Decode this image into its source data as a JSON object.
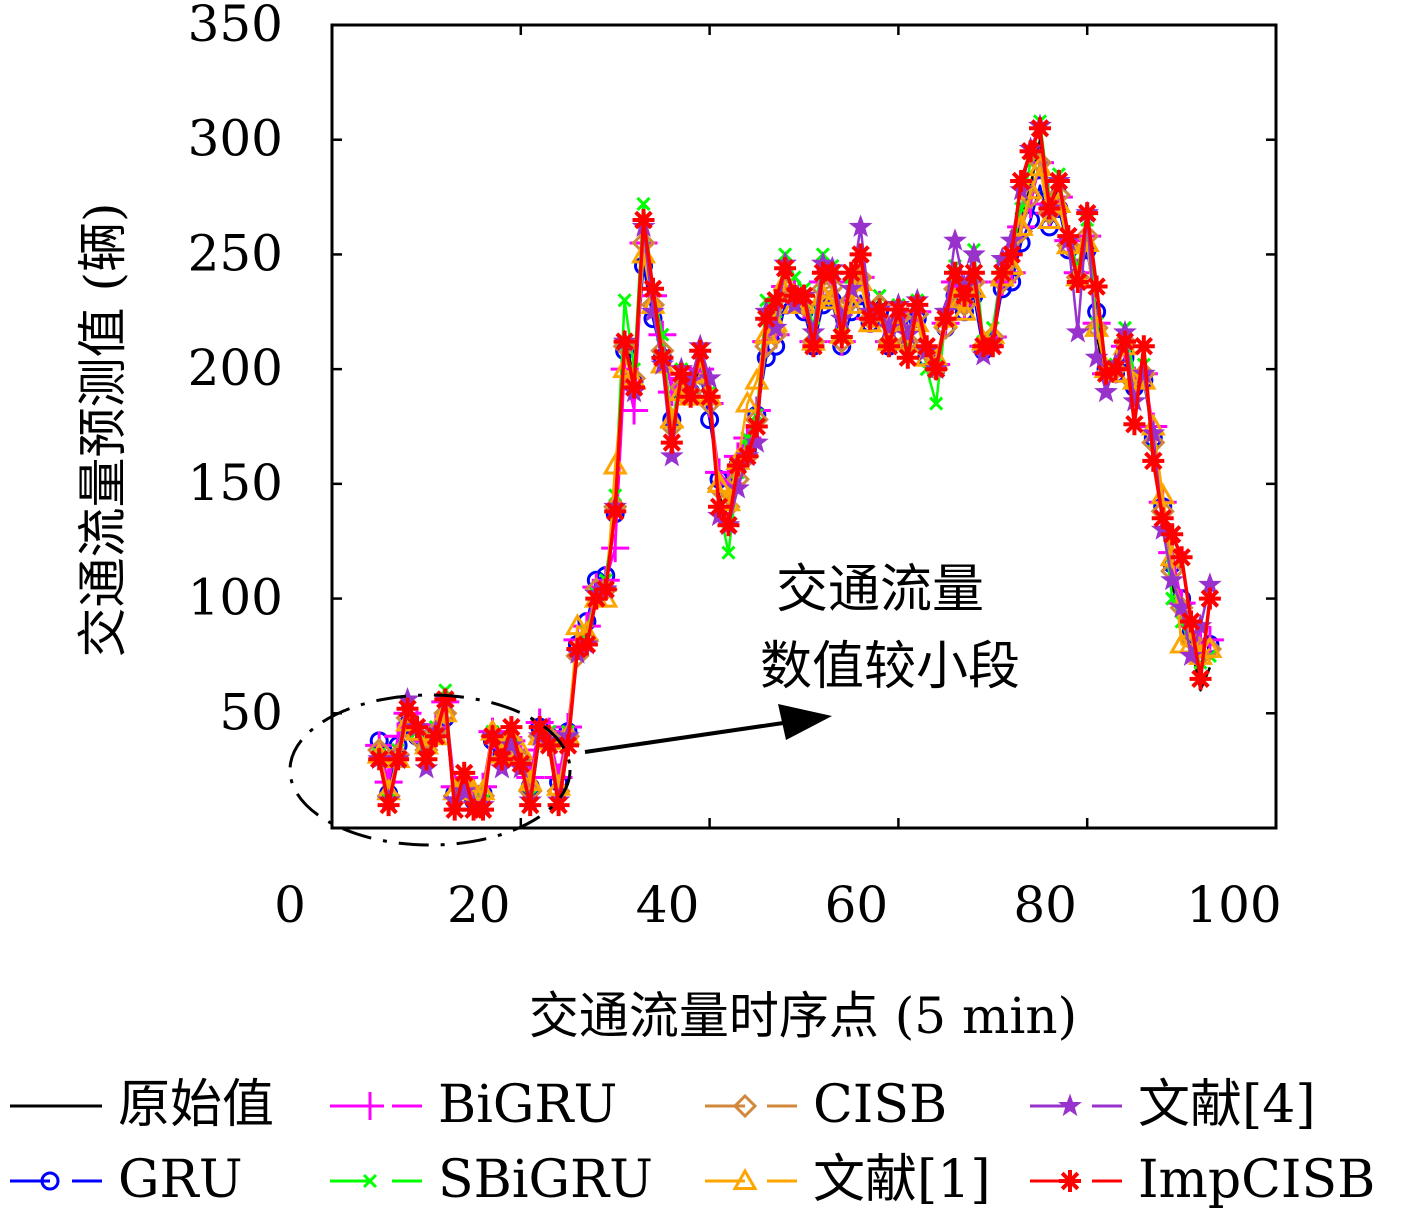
{
  "chart_data": {
    "type": "line",
    "title": "",
    "xlabel": "交通流量时序点 (5 min)",
    "ylabel": "交通流量预测值 (辆)",
    "xlim": [
      0,
      100
    ],
    "ylim": [
      0,
      350
    ],
    "xticks": [
      0,
      20,
      40,
      60,
      80,
      100
    ],
    "yticks": [
      50,
      100,
      150,
      200,
      250,
      300,
      350
    ],
    "xtick_labels": [
      "0",
      "20",
      "40",
      "60",
      "80",
      "100"
    ],
    "ytick_labels": [
      "50",
      "100",
      "150",
      "200",
      "250",
      "300",
      "350"
    ],
    "grid": false,
    "legend_position": "bottom",
    "annotation": {
      "line1": "交通流量",
      "line2": "数值较小段"
    },
    "x": [
      1,
      2,
      3,
      4,
      5,
      6,
      7,
      8,
      9,
      10,
      11,
      12,
      13,
      14,
      15,
      16,
      17,
      18,
      19,
      20,
      21,
      22,
      23,
      24,
      25,
      26,
      27,
      28,
      29,
      30,
      31,
      32,
      33,
      34,
      35,
      36,
      37,
      38,
      39,
      40,
      41,
      42,
      43,
      44,
      45,
      46,
      47,
      48,
      49,
      50,
      51,
      52,
      53,
      54,
      55,
      56,
      57,
      58,
      59,
      60,
      61,
      62,
      63,
      64,
      65,
      66,
      67,
      68,
      69,
      70,
      71,
      72,
      73,
      74,
      75,
      76,
      77,
      78,
      79,
      80,
      81,
      82,
      83,
      84,
      85,
      86,
      87,
      88,
      89,
      90,
      91,
      92,
      93,
      94,
      95,
      96,
      97,
      98,
      99,
      100
    ],
    "series": [
      {
        "name": "原始值",
        "color": "#000000",
        "marker": "none",
        "dashed": false,
        "values": [
          null,
          null,
          null,
          null,
          30,
          10,
          30,
          50,
          40,
          30,
          40,
          50,
          10,
          20,
          10,
          10,
          40,
          30,
          40,
          30,
          10,
          40,
          40,
          10,
          40,
          75,
          80,
          100,
          105,
          140,
          215,
          195,
          265,
          230,
          210,
          170,
          195,
          190,
          200,
          190,
          145,
          135,
          150,
          160,
          175,
          215,
          220,
          240,
          235,
          230,
          215,
          240,
          240,
          215,
          235,
          245,
          225,
          230,
          215,
          225,
          215,
          225,
          210,
          200,
          220,
          240,
          230,
          240,
          210,
          215,
          240,
          245,
          265,
          280,
          300,
          270,
          280,
          255,
          240,
          260,
          215,
          195,
          200,
          215,
          195,
          200,
          165,
          135,
          105,
          95,
          80,
          60,
          70,
          null,
          null,
          null,
          null,
          null,
          null,
          null
        ]
      },
      {
        "name": "GRU",
        "color": "#0000ff",
        "marker": "circle",
        "dashed": true,
        "values": [
          null,
          null,
          null,
          null,
          38,
          15,
          36,
          45,
          40,
          35,
          42,
          48,
          15,
          18,
          12,
          15,
          38,
          32,
          36,
          30,
          18,
          44,
          40,
          20,
          42,
          80,
          90,
          108,
          110,
          137,
          208,
          195,
          245,
          222,
          205,
          178,
          190,
          190,
          198,
          178,
          152,
          148,
          158,
          165,
          180,
          205,
          210,
          228,
          230,
          225,
          210,
          228,
          230,
          210,
          225,
          232,
          220,
          225,
          210,
          220,
          210,
          222,
          205,
          200,
          218,
          232,
          225,
          232,
          208,
          212,
          235,
          238,
          255,
          265,
          280,
          262,
          270,
          252,
          240,
          252,
          225,
          200,
          198,
          205,
          192,
          195,
          170,
          140,
          115,
          100,
          85,
          78,
          80,
          null,
          null,
          null,
          null,
          null,
          null,
          null
        ]
      },
      {
        "name": "BiGRU",
        "color": "#ff00ff",
        "marker": "plus",
        "dashed": true,
        "values": [
          null,
          null,
          null,
          null,
          36,
          20,
          40,
          50,
          45,
          38,
          44,
          55,
          18,
          22,
          16,
          18,
          42,
          35,
          38,
          34,
          22,
          46,
          42,
          22,
          44,
          82,
          88,
          105,
          108,
          122,
          200,
          182,
          255,
          232,
          215,
          190,
          196,
          195,
          200,
          185,
          155,
          150,
          162,
          170,
          182,
          212,
          215,
          236,
          234,
          228,
          212,
          238,
          238,
          212,
          230,
          240,
          222,
          228,
          212,
          222,
          212,
          225,
          208,
          202,
          220,
          238,
          228,
          238,
          210,
          214,
          238,
          242,
          262,
          272,
          290,
          268,
          275,
          256,
          242,
          258,
          220,
          198,
          200,
          210,
          195,
          198,
          175,
          142,
          120,
          98,
          88,
          80,
          82,
          null,
          null,
          null,
          null,
          null,
          null,
          null
        ]
      },
      {
        "name": "SBiGRU",
        "color": "#00ff00",
        "marker": "x",
        "dashed": true,
        "values": [
          null,
          null,
          null,
          null,
          32,
          12,
          34,
          52,
          42,
          32,
          44,
          60,
          10,
          20,
          12,
          12,
          42,
          30,
          40,
          28,
          14,
          42,
          42,
          12,
          42,
          78,
          86,
          102,
          108,
          145,
          230,
          200,
          272,
          235,
          215,
          175,
          200,
          192,
          203,
          190,
          140,
          120,
          155,
          170,
          180,
          230,
          225,
          250,
          240,
          235,
          218,
          250,
          245,
          215,
          240,
          250,
          228,
          232,
          212,
          228,
          210,
          230,
          200,
          185,
          222,
          245,
          232,
          252,
          212,
          218,
          245,
          250,
          270,
          290,
          308,
          275,
          285,
          258,
          244,
          265,
          220,
          198,
          202,
          218,
          198,
          202,
          168,
          135,
          100,
          90,
          78,
          72,
          75,
          null,
          null,
          null,
          null,
          null,
          null,
          null
        ]
      },
      {
        "name": "CISB",
        "color": "#d2883c",
        "marker": "diamond",
        "dashed": true,
        "values": [
          null,
          null,
          null,
          null,
          34,
          14,
          32,
          48,
          40,
          34,
          42,
          50,
          14,
          18,
          14,
          14,
          40,
          30,
          38,
          30,
          16,
          40,
          40,
          16,
          40,
          75,
          82,
          104,
          104,
          140,
          210,
          196,
          255,
          228,
          208,
          175,
          192,
          190,
          198,
          185,
          148,
          140,
          152,
          162,
          178,
          210,
          215,
          235,
          232,
          228,
          212,
          235,
          236,
          212,
          230,
          240,
          222,
          228,
          212,
          222,
          212,
          224,
          208,
          200,
          218,
          235,
          228,
          238,
          210,
          214,
          238,
          242,
          260,
          275,
          290,
          268,
          276,
          254,
          240,
          258,
          218,
          198,
          200,
          212,
          194,
          198,
          168,
          138,
          112,
          96,
          82,
          75,
          78,
          null,
          null,
          null,
          null,
          null,
          null,
          null
        ]
      },
      {
        "name": "文献[1]",
        "color": "#ffa500",
        "marker": "triangle",
        "dashed": true,
        "values": [
          null,
          null,
          null,
          null,
          32,
          16,
          30,
          46,
          42,
          36,
          40,
          50,
          16,
          22,
          16,
          16,
          42,
          32,
          40,
          34,
          20,
          40,
          38,
          18,
          40,
          88,
          85,
          100,
          100,
          158,
          200,
          195,
          250,
          228,
          202,
          178,
          190,
          188,
          198,
          188,
          150,
          142,
          160,
          185,
          195,
          215,
          220,
          238,
          228,
          228,
          212,
          232,
          230,
          215,
          228,
          238,
          220,
          222,
          212,
          220,
          212,
          220,
          205,
          205,
          222,
          230,
          225,
          235,
          212,
          215,
          240,
          245,
          262,
          278,
          288,
          265,
          272,
          254,
          240,
          255,
          218,
          200,
          198,
          210,
          195,
          195,
          175,
          145,
          118,
          80,
          80,
          75,
          78,
          null,
          null,
          null,
          null,
          null,
          null,
          null
        ]
      },
      {
        "name": "文献[4]",
        "color": "#9932cc",
        "marker": "star",
        "dashed": true,
        "values": [
          null,
          null,
          null,
          null,
          30,
          12,
          30,
          56,
          44,
          26,
          42,
          56,
          12,
          16,
          10,
          10,
          40,
          26,
          36,
          26,
          12,
          40,
          38,
          12,
          40,
          76,
          80,
          102,
          104,
          140,
          212,
          190,
          262,
          225,
          202,
          162,
          200,
          195,
          210,
          196,
          136,
          132,
          148,
          162,
          168,
          225,
          218,
          246,
          228,
          232,
          216,
          246,
          244,
          222,
          235,
          262,
          225,
          226,
          218,
          228,
          215,
          230,
          208,
          200,
          225,
          256,
          236,
          250,
          206,
          212,
          248,
          256,
          278,
          296,
          306,
          270,
          282,
          256,
          216,
          268,
          205,
          190,
          202,
          216,
          186,
          198,
          172,
          130,
          108,
          96,
          75,
          88,
          106,
          null,
          null,
          null,
          null,
          null,
          null,
          null
        ]
      },
      {
        "name": "ImpCISB",
        "color": "#ff0000",
        "marker": "asterisk",
        "dashed": true,
        "values": [
          null,
          null,
          null,
          null,
          30,
          10,
          30,
          52,
          44,
          30,
          40,
          56,
          8,
          24,
          8,
          8,
          40,
          30,
          44,
          28,
          10,
          44,
          36,
          10,
          36,
          78,
          80,
          100,
          104,
          138,
          212,
          192,
          265,
          235,
          205,
          168,
          198,
          188,
          208,
          188,
          140,
          132,
          158,
          162,
          175,
          222,
          230,
          244,
          232,
          232,
          210,
          242,
          242,
          214,
          242,
          250,
          222,
          226,
          210,
          226,
          205,
          228,
          210,
          200,
          222,
          242,
          232,
          242,
          210,
          210,
          242,
          250,
          282,
          295,
          305,
          270,
          282,
          258,
          238,
          268,
          236,
          198,
          200,
          212,
          176,
          210,
          160,
          135,
          128,
          118,
          90,
          65,
          100,
          null,
          null,
          null,
          null,
          null,
          null,
          null
        ]
      }
    ]
  },
  "legend": {
    "entries": [
      {
        "label": "原始值",
        "color": "#000000",
        "marker": "none",
        "dashed": false
      },
      {
        "label": "BiGRU",
        "color": "#ff00ff",
        "marker": "plus",
        "dashed": true
      },
      {
        "label": "CISB",
        "color": "#d2883c",
        "marker": "diamond",
        "dashed": true
      },
      {
        "label": "文献[4]",
        "color": "#9932cc",
        "marker": "star",
        "dashed": true
      },
      {
        "label": "GRU",
        "color": "#0000ff",
        "marker": "circle",
        "dashed": true
      },
      {
        "label": "SBiGRU",
        "color": "#00ff00",
        "marker": "x",
        "dashed": true
      },
      {
        "label": "文献[1]",
        "color": "#ffa500",
        "marker": "triangle",
        "dashed": true
      },
      {
        "label": "ImpCISB",
        "color": "#ff0000",
        "marker": "asterisk",
        "dashed": true
      }
    ]
  }
}
